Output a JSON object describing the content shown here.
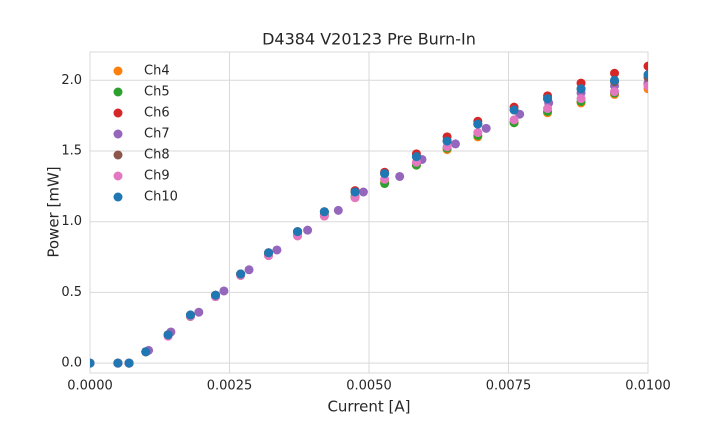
{
  "chart_data": {
    "type": "scatter",
    "title": "D4384 V20123 Pre Burn-In",
    "xlabel": "Current [A]",
    "ylabel": "Power [mW]",
    "xlim": [
      0,
      0.01
    ],
    "ylim": [
      -0.07,
      2.2
    ],
    "xticks": [
      {
        "value": 0,
        "label": "0.0000"
      },
      {
        "value": 0.0025,
        "label": "0.0025"
      },
      {
        "value": 0.005,
        "label": "0.0050"
      },
      {
        "value": 0.0075,
        "label": "0.0075"
      },
      {
        "value": 0.01,
        "label": "0.0100"
      }
    ],
    "yticks": [
      {
        "value": 0,
        "label": "0.0"
      },
      0.5,
      {
        "value": 1,
        "label": "1.0"
      },
      1.5,
      {
        "value": 2,
        "label": "2.0"
      }
    ],
    "grid": true,
    "legend": "upper left",
    "series": [
      {
        "name": "Ch4",
        "color": "#ff7f0e",
        "x": [
          0,
          0.0005,
          0.0007,
          0.001,
          0.0014,
          0.0018,
          0.00225,
          0.0027,
          0.0032,
          0.00372,
          0.0042,
          0.00475,
          0.00528,
          0.00585,
          0.0064,
          0.00695,
          0.0076,
          0.0082,
          0.0088,
          0.0094,
          0.01
        ],
        "values": [
          0,
          0,
          0,
          0.08,
          0.2,
          0.33,
          0.47,
          0.62,
          0.76,
          0.9,
          1.04,
          1.17,
          1.28,
          1.4,
          1.51,
          1.6,
          1.7,
          1.77,
          1.84,
          1.9,
          1.94
        ]
      },
      {
        "name": "Ch5",
        "color": "#2ca02c",
        "x": [
          0,
          0.0005,
          0.0007,
          0.001,
          0.0014,
          0.0018,
          0.00225,
          0.0027,
          0.0032,
          0.00372,
          0.0042,
          0.00475,
          0.00528,
          0.00585,
          0.0064,
          0.00695,
          0.0076,
          0.0082,
          0.0088,
          0.0094,
          0.01
        ],
        "values": [
          0,
          0,
          0,
          0.08,
          0.2,
          0.33,
          0.48,
          0.63,
          0.77,
          0.91,
          1.05,
          1.18,
          1.27,
          1.4,
          1.52,
          1.61,
          1.7,
          1.78,
          1.85,
          1.91,
          1.97
        ]
      },
      {
        "name": "Ch6",
        "color": "#d62728",
        "x": [
          0,
          0.0005,
          0.0007,
          0.001,
          0.0014,
          0.0018,
          0.00225,
          0.0027,
          0.0032,
          0.00372,
          0.0042,
          0.00475,
          0.00528,
          0.00585,
          0.0064,
          0.00695,
          0.0076,
          0.0082,
          0.0088,
          0.0094,
          0.01
        ],
        "values": [
          0,
          0,
          0,
          0.08,
          0.2,
          0.34,
          0.48,
          0.63,
          0.78,
          0.93,
          1.07,
          1.22,
          1.35,
          1.48,
          1.6,
          1.71,
          1.81,
          1.89,
          1.98,
          2.05,
          2.1
        ]
      },
      {
        "name": "Ch7",
        "color": "#9467bd",
        "x": [
          0,
          0.0005,
          0.0007,
          0.00105,
          0.00145,
          0.00195,
          0.0024,
          0.00285,
          0.00335,
          0.0039,
          0.00445,
          0.0049,
          0.00555,
          0.00595,
          0.00655,
          0.0071,
          0.0077,
          0.00822,
          0.0088,
          0.0094,
          0.01
        ],
        "values": [
          0,
          0,
          0,
          0.09,
          0.22,
          0.36,
          0.51,
          0.66,
          0.8,
          0.94,
          1.08,
          1.21,
          1.32,
          1.44,
          1.55,
          1.66,
          1.76,
          1.84,
          1.91,
          1.96,
          1.98
        ]
      },
      {
        "name": "Ch8",
        "color": "#8c564b",
        "x": [
          0,
          0.0005,
          0.0007,
          0.001,
          0.0014,
          0.0018,
          0.00225,
          0.0027,
          0.0032,
          0.00372,
          0.0042,
          0.00475,
          0.00528,
          0.00585,
          0.0064,
          0.00695,
          0.0076,
          0.0082,
          0.0088,
          0.0094,
          0.01
        ],
        "values": [
          0,
          0,
          0,
          0.08,
          0.2,
          0.34,
          0.48,
          0.63,
          0.78,
          0.93,
          1.07,
          1.21,
          1.34,
          1.46,
          1.57,
          1.69,
          1.79,
          1.87,
          1.94,
          1.99,
          2.02
        ]
      },
      {
        "name": "Ch9",
        "color": "#e377c2",
        "x": [
          0,
          0.0005,
          0.0007,
          0.001,
          0.0014,
          0.0018,
          0.00225,
          0.0027,
          0.0032,
          0.00372,
          0.0042,
          0.00475,
          0.00528,
          0.00585,
          0.0064,
          0.00695,
          0.0076,
          0.0082,
          0.0088,
          0.0094,
          0.01
        ],
        "values": [
          0,
          0,
          0,
          0.08,
          0.19,
          0.33,
          0.47,
          0.62,
          0.76,
          0.9,
          1.04,
          1.17,
          1.3,
          1.42,
          1.53,
          1.63,
          1.72,
          1.8,
          1.87,
          1.92,
          1.96
        ]
      },
      {
        "name": "Ch10",
        "color": "#1f77b4",
        "x": [
          0,
          0.0005,
          0.0007,
          0.001,
          0.0014,
          0.0018,
          0.00225,
          0.0027,
          0.0032,
          0.00372,
          0.0042,
          0.00475,
          0.00528,
          0.00585,
          0.0064,
          0.00695,
          0.0076,
          0.0082,
          0.0088,
          0.0094,
          0.01
        ],
        "values": [
          0,
          0,
          0,
          0.08,
          0.2,
          0.34,
          0.48,
          0.63,
          0.78,
          0.93,
          1.07,
          1.21,
          1.34,
          1.46,
          1.57,
          1.69,
          1.79,
          1.87,
          1.94,
          2.0,
          2.04
        ]
      }
    ]
  }
}
